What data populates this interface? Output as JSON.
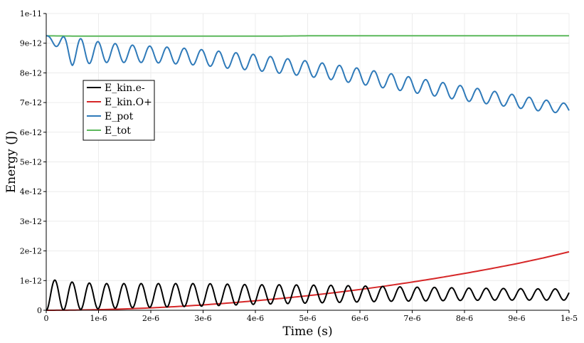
{
  "chart_data": {
    "type": "line",
    "title": "",
    "xlabel": "Time (s)",
    "ylabel": "Energy (J)",
    "xlim": [
      0,
      1e-05
    ],
    "ylim": [
      0,
      1e-11
    ],
    "grid": true,
    "legend_position": "top-left",
    "x_ticks": [
      "0",
      "1e-6",
      "2e-6",
      "3e-6",
      "4e-6",
      "5e-6",
      "6e-6",
      "7e-6",
      "8e-6",
      "9e-6",
      "1e-5"
    ],
    "y_ticks": [
      "0",
      "1e-12",
      "2e-12",
      "3e-12",
      "4e-12",
      "5e-12",
      "6e-12",
      "7e-12",
      "8e-12",
      "9e-12",
      "1e-11"
    ],
    "x": [
      0,
      5e-07,
      1e-06,
      1.5e-06,
      2e-06,
      2.5e-06,
      3e-06,
      3.5e-06,
      4e-06,
      4.5e-06,
      5e-06,
      5.5e-06,
      6e-06,
      6.5e-06,
      7e-06,
      7.5e-06,
      8e-06,
      8.5e-06,
      9e-06,
      9.5e-06,
      1e-05
    ],
    "series": [
      {
        "name": "E_kin.e-",
        "color": "#000000",
        "oscillation_period_s": 3.3e-07,
        "peak_values": [
          1.05e-12,
          9.5e-13,
          9e-13,
          9e-13,
          9e-13,
          9e-13,
          9e-13,
          8.8e-13,
          8.6e-13,
          8.6e-13,
          8.5e-13,
          8.4e-13,
          8.2e-13,
          8e-13,
          7.8e-13,
          7.7e-13,
          7.5e-13,
          7.4e-13,
          7.3e-13,
          7.2e-13,
          7.2e-13
        ],
        "trough_values": [
          0,
          2e-14,
          5e-14,
          8e-14,
          1e-13,
          1.2e-13,
          1.4e-13,
          1.7e-13,
          2e-13,
          2.2e-13,
          2.4e-13,
          2.6e-13,
          2.8e-13,
          3e-13,
          3.1e-13,
          3.2e-13,
          3.3e-13,
          3.4e-13,
          3.4e-13,
          3.4e-13,
          3.4e-13
        ]
      },
      {
        "name": "E_kin.O+",
        "color": "#d62728",
        "values": [
          0,
          5e-15,
          2e-14,
          4.5e-14,
          8e-14,
          1.25e-13,
          1.8e-13,
          2.45e-13,
          3.2e-13,
          4e-13,
          4.9e-13,
          5.9e-13,
          7e-13,
          8.2e-13,
          9.5e-13,
          1.09e-12,
          1.24e-12,
          1.4e-12,
          1.57e-12,
          1.76e-12,
          1.97e-12
        ]
      },
      {
        "name": "E_pot",
        "color": "#2f7ab9",
        "oscillation_period_s": 3.3e-07,
        "peak_values": [
          9.25e-12,
          9.2e-12,
          9.05e-12,
          8.95e-12,
          8.9e-12,
          8.85e-12,
          8.78e-12,
          8.7e-12,
          8.62e-12,
          8.5e-12,
          8.4e-12,
          8.28e-12,
          8.15e-12,
          8e-12,
          7.85e-12,
          7.7e-12,
          7.55e-12,
          7.4e-12,
          7.25e-12,
          7.1e-12,
          6.95e-12
        ],
        "trough_values": [
          9.25e-12,
          8.25e-12,
          8.35e-12,
          8.35e-12,
          8.35e-12,
          8.3e-12,
          8.25e-12,
          8.15e-12,
          8.08e-12,
          7.98e-12,
          7.88e-12,
          7.76e-12,
          7.62e-12,
          7.48e-12,
          7.34e-12,
          7.2e-12,
          7.06e-12,
          6.94e-12,
          6.82e-12,
          6.7e-12,
          6.62e-12
        ]
      },
      {
        "name": "E_tot",
        "color": "#5cb85c",
        "values": [
          9.25e-12,
          9.24e-12,
          9.24e-12,
          9.24e-12,
          9.24e-12,
          9.24e-12,
          9.24e-12,
          9.24e-12,
          9.24e-12,
          9.24e-12,
          9.25e-12,
          9.25e-12,
          9.25e-12,
          9.25e-12,
          9.25e-12,
          9.25e-12,
          9.25e-12,
          9.25e-12,
          9.25e-12,
          9.25e-12,
          9.25e-12
        ]
      }
    ]
  }
}
